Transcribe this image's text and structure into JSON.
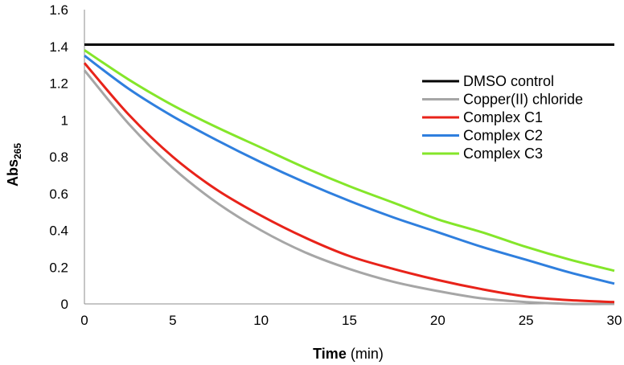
{
  "chart_data": {
    "type": "line",
    "title": "",
    "xlabel": {
      "main": "Time",
      "unit": "(min)"
    },
    "ylabel": {
      "main": "Abs",
      "subscript": "265"
    },
    "xlim": [
      0,
      30
    ],
    "ylim": [
      0,
      1.6
    ],
    "xticks": [
      "0",
      "5",
      "10",
      "15",
      "20",
      "25",
      "30"
    ],
    "yticks": [
      "0",
      "0.2",
      "0.4",
      "0.6",
      "0.8",
      "1",
      "1.2",
      "1.4",
      "1.6"
    ],
    "grid": false,
    "legend_position": "upper-right",
    "x": [
      0,
      2.5,
      5,
      7.5,
      10,
      12.5,
      15,
      17.5,
      20,
      22.5,
      25,
      27.5,
      30
    ],
    "series": [
      {
        "name": "DMSO control",
        "color": "#000000",
        "values": [
          1.41,
          1.41,
          1.41,
          1.41,
          1.41,
          1.41,
          1.41,
          1.41,
          1.41,
          1.41,
          1.41,
          1.41,
          1.41
        ]
      },
      {
        "name": "Copper(II) chloride",
        "color": "#a6a6a6",
        "values": [
          1.27,
          0.98,
          0.74,
          0.55,
          0.4,
          0.28,
          0.19,
          0.12,
          0.07,
          0.03,
          0.01,
          0.0,
          0.0
        ]
      },
      {
        "name": "Complex C1",
        "color": "#e8231a",
        "values": [
          1.31,
          1.03,
          0.8,
          0.62,
          0.48,
          0.36,
          0.26,
          0.19,
          0.13,
          0.08,
          0.04,
          0.02,
          0.01
        ]
      },
      {
        "name": "Complex C2",
        "color": "#2f7fde",
        "values": [
          1.35,
          1.17,
          1.02,
          0.89,
          0.77,
          0.66,
          0.56,
          0.47,
          0.39,
          0.31,
          0.24,
          0.17,
          0.11
        ]
      },
      {
        "name": "Complex C3",
        "color": "#84e62a",
        "values": [
          1.38,
          1.22,
          1.08,
          0.96,
          0.85,
          0.74,
          0.64,
          0.55,
          0.46,
          0.39,
          0.31,
          0.24,
          0.18
        ]
      }
    ]
  }
}
